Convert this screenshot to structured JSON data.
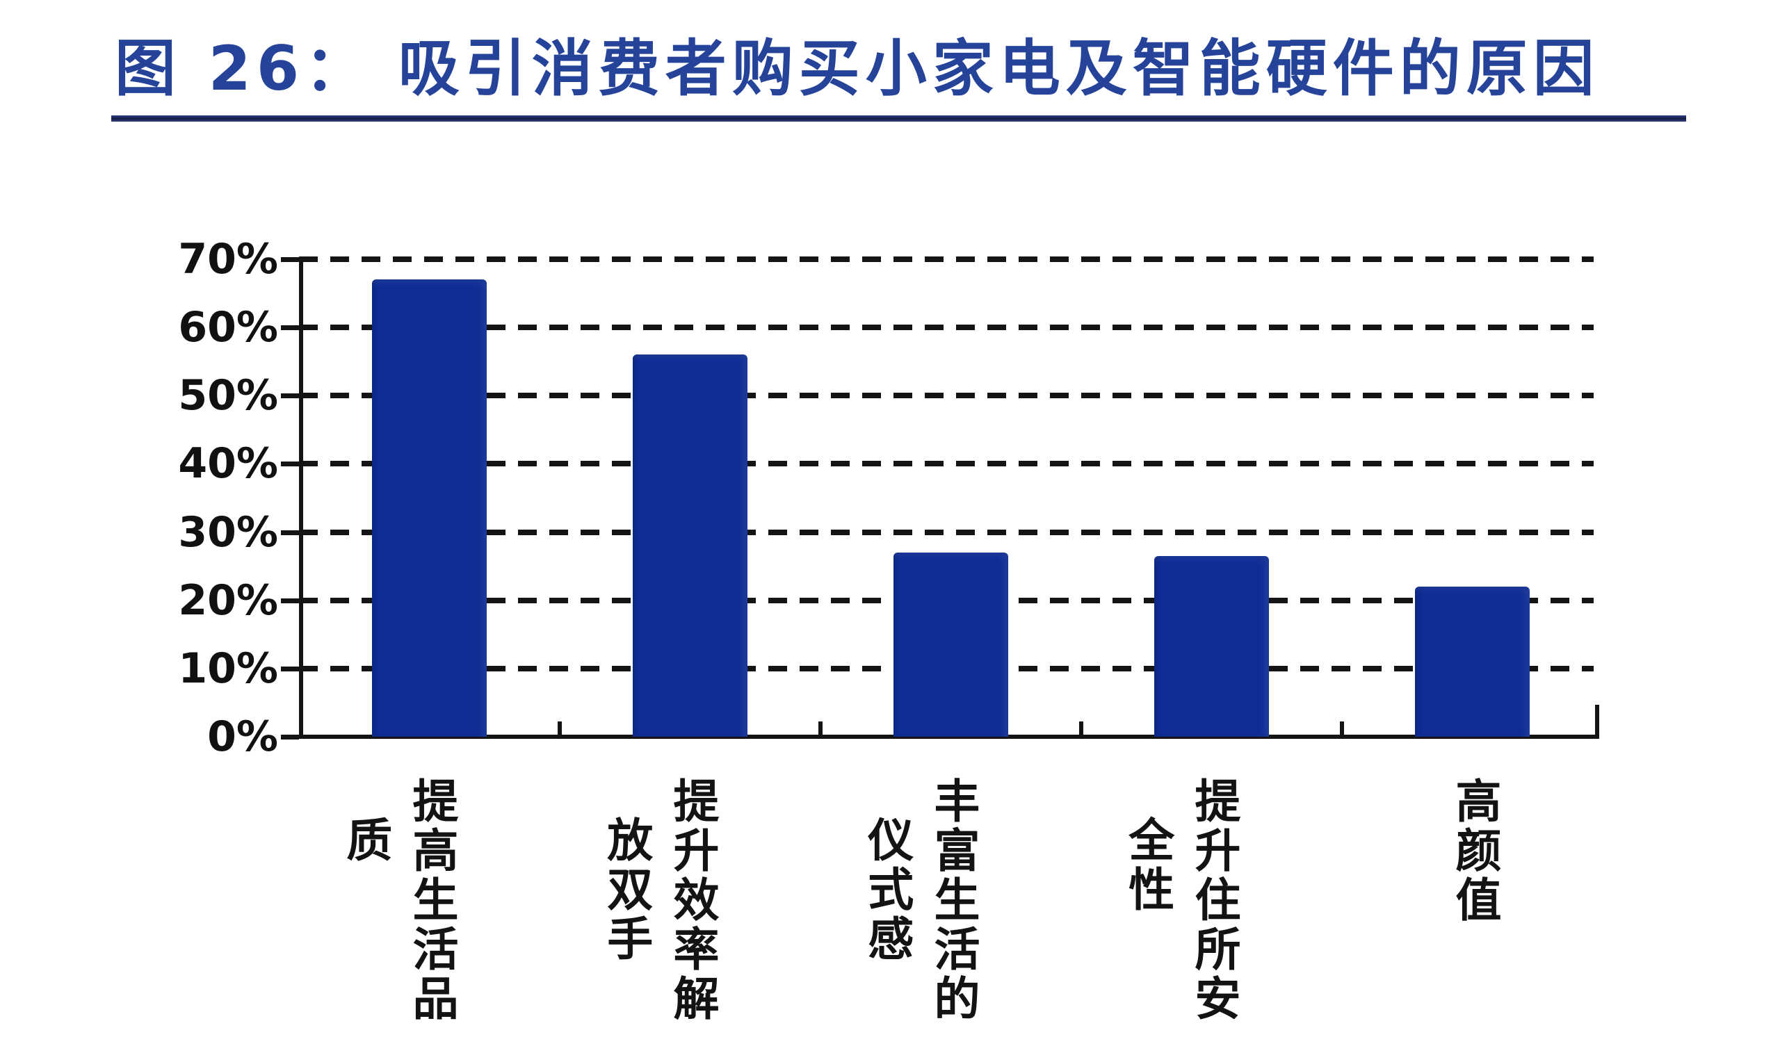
{
  "title": {
    "text": "图 26： 吸引消费者购买小家电及智能硬件的原因"
  },
  "colors": {
    "bar_fill": "#0e2d96",
    "title_text": "#26439a",
    "title_underline": "#1b2766",
    "axis_and_grid": "#141414",
    "background": "#ffffff"
  },
  "chart_data": {
    "type": "bar",
    "title": "图 26： 吸引消费者购买小家电及智能硬件的原因",
    "categories": [
      "提高生活品质",
      "提升效率解放双手",
      "丰富生活的仪式感",
      "提升住所安全性",
      "高颜值"
    ],
    "values": [
      67,
      56,
      27,
      26.5,
      22
    ],
    "value_unit": "%",
    "xlabel": "",
    "ylabel": "",
    "ylim": [
      0,
      70
    ],
    "ytick_labels": [
      "70%",
      "60%",
      "50%",
      "40%",
      "30%",
      "20%",
      "10%",
      "0%"
    ],
    "grid": "horizontal dashed lines at every 10%",
    "legend": "none",
    "bar_color": "#0e2d96",
    "category_text_orientation": "vertical columns, right-to-left wrap after 5 characters"
  }
}
